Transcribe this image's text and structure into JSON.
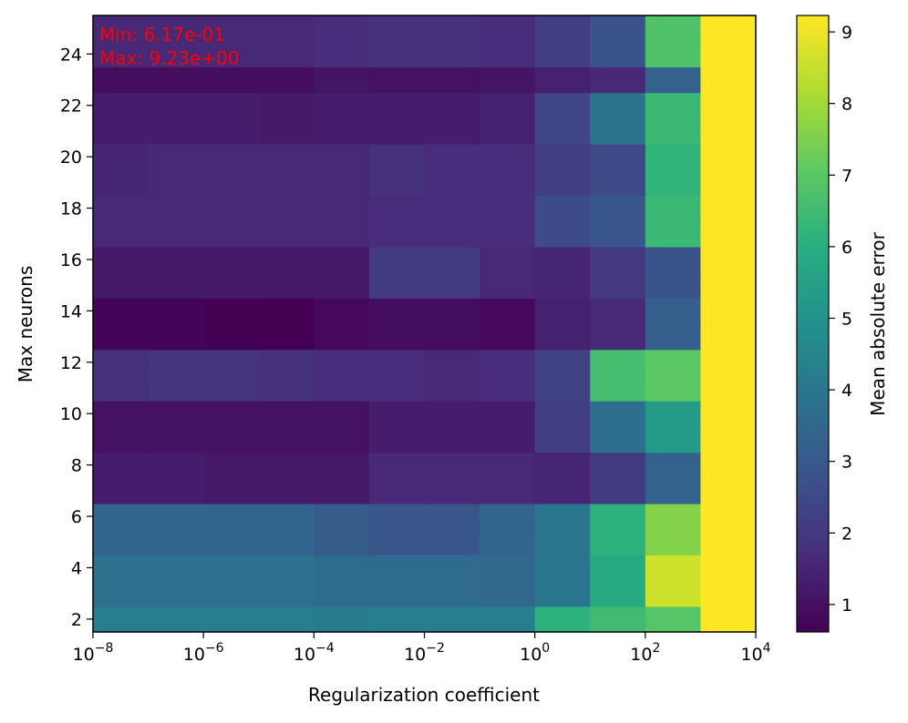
{
  "chart_data": {
    "type": "heatmap",
    "xlabel": "Regularization coefficient",
    "ylabel": "Max neurons",
    "colorbar_label": "Mean absolute error",
    "colormap": "viridis",
    "x_scale": "log",
    "xlim": [
      1e-08,
      10000
    ],
    "ylim": [
      1.5,
      25.5
    ],
    "clim": [
      0.617,
      9.23
    ],
    "x_ticks": [
      {
        "value": 1e-08,
        "base": "10",
        "exp": "−8"
      },
      {
        "value": 1e-06,
        "base": "10",
        "exp": "−6"
      },
      {
        "value": 0.0001,
        "base": "10",
        "exp": "−4"
      },
      {
        "value": 0.01,
        "base": "10",
        "exp": "−2"
      },
      {
        "value": 1,
        "base": "10",
        "exp": "0"
      },
      {
        "value": 100,
        "base": "10",
        "exp": "2"
      },
      {
        "value": 10000,
        "base": "10",
        "exp": "4"
      }
    ],
    "y_ticks": [
      "2",
      "4",
      "6",
      "8",
      "10",
      "12",
      "14",
      "16",
      "18",
      "20",
      "22",
      "24"
    ],
    "colorbar_ticks": [
      "1",
      "2",
      "3",
      "4",
      "5",
      "6",
      "7",
      "8",
      "9"
    ],
    "x_edges": [
      1e-08,
      1e-07,
      1e-06,
      1e-05,
      0.0001,
      0.001,
      0.01,
      0.1,
      1,
      10,
      100,
      1000,
      10000
    ],
    "y_edges": [
      1.5,
      2.5,
      3.5,
      4.5,
      5.5,
      6.5,
      7.5,
      8.5,
      9.5,
      10.5,
      11.5,
      12.5,
      13.5,
      14.5,
      15.5,
      16.5,
      17.5,
      18.5,
      19.5,
      20.5,
      21.5,
      22.5,
      23.5,
      24.5,
      25.5
    ],
    "rows": [
      {
        "y": 2,
        "values": [
          4.3,
          4.3,
          4.3,
          4.3,
          4.2,
          4.3,
          4.3,
          4.3,
          6.1,
          6.5,
          6.9,
          9.23
        ]
      },
      {
        "y": 3,
        "values": [
          3.8,
          3.8,
          3.8,
          3.8,
          3.6,
          3.6,
          3.6,
          3.5,
          4.0,
          5.8,
          8.6,
          9.23
        ]
      },
      {
        "y": 4,
        "values": [
          3.8,
          3.8,
          3.8,
          3.8,
          3.6,
          3.6,
          3.6,
          3.5,
          4.0,
          5.8,
          8.6,
          9.23
        ]
      },
      {
        "y": 5,
        "values": [
          3.4,
          3.4,
          3.4,
          3.4,
          3.1,
          2.9,
          2.9,
          3.4,
          4.0,
          6.1,
          7.6,
          9.23
        ]
      },
      {
        "y": 6,
        "values": [
          3.4,
          3.4,
          3.4,
          3.4,
          3.1,
          2.9,
          2.9,
          3.4,
          4.0,
          6.1,
          7.6,
          9.23
        ]
      },
      {
        "y": 7,
        "values": [
          1.3,
          1.3,
          1.2,
          1.2,
          1.2,
          1.6,
          1.6,
          1.6,
          1.5,
          2.1,
          3.3,
          9.23
        ]
      },
      {
        "y": 8,
        "values": [
          1.3,
          1.3,
          1.2,
          1.2,
          1.2,
          1.6,
          1.6,
          1.6,
          1.5,
          2.1,
          3.3,
          9.23
        ]
      },
      {
        "y": 9,
        "values": [
          1.0,
          1.0,
          1.0,
          1.0,
          1.0,
          1.3,
          1.3,
          1.3,
          2.2,
          3.7,
          5.3,
          9.23
        ]
      },
      {
        "y": 10,
        "values": [
          1.0,
          1.0,
          1.0,
          1.0,
          1.0,
          1.3,
          1.3,
          1.3,
          2.2,
          3.7,
          5.3,
          9.23
        ]
      },
      {
        "y": 11,
        "values": [
          1.8,
          1.9,
          1.9,
          1.8,
          1.7,
          1.7,
          1.6,
          1.7,
          2.3,
          6.6,
          7.0,
          9.23
        ]
      },
      {
        "y": 12,
        "values": [
          1.8,
          1.9,
          1.9,
          1.8,
          1.7,
          1.7,
          1.6,
          1.7,
          2.3,
          6.6,
          7.0,
          9.23
        ]
      },
      {
        "y": 13,
        "values": [
          0.7,
          0.7,
          0.65,
          0.617,
          0.8,
          0.9,
          0.9,
          0.8,
          1.4,
          1.6,
          3.2,
          9.23
        ]
      },
      {
        "y": 14,
        "values": [
          0.7,
          0.7,
          0.65,
          0.617,
          0.8,
          0.9,
          0.9,
          0.8,
          1.4,
          1.6,
          3.2,
          9.23
        ]
      },
      {
        "y": 15,
        "values": [
          1.2,
          1.2,
          1.2,
          1.2,
          1.2,
          2.1,
          2.1,
          1.6,
          1.5,
          2.0,
          2.8,
          9.23
        ]
      },
      {
        "y": 16,
        "values": [
          1.2,
          1.2,
          1.2,
          1.2,
          1.2,
          2.1,
          2.1,
          1.6,
          1.5,
          2.0,
          2.8,
          9.23
        ]
      },
      {
        "y": 17,
        "values": [
          1.6,
          1.6,
          1.6,
          1.6,
          1.6,
          1.7,
          1.7,
          1.7,
          2.6,
          2.9,
          6.4,
          9.23
        ]
      },
      {
        "y": 18,
        "values": [
          1.6,
          1.6,
          1.6,
          1.6,
          1.6,
          1.7,
          1.7,
          1.7,
          2.6,
          2.9,
          6.4,
          9.23
        ]
      },
      {
        "y": 19,
        "values": [
          1.5,
          1.6,
          1.6,
          1.6,
          1.6,
          1.8,
          1.7,
          1.7,
          2.2,
          2.5,
          6.2,
          9.23
        ]
      },
      {
        "y": 20,
        "values": [
          1.5,
          1.6,
          1.6,
          1.6,
          1.6,
          1.8,
          1.7,
          1.7,
          2.2,
          2.5,
          6.2,
          9.23
        ]
      },
      {
        "y": 21,
        "values": [
          1.3,
          1.3,
          1.3,
          1.2,
          1.3,
          1.3,
          1.3,
          1.4,
          2.4,
          3.9,
          6.4,
          9.23
        ]
      },
      {
        "y": 22,
        "values": [
          1.3,
          1.3,
          1.3,
          1.2,
          1.3,
          1.3,
          1.3,
          1.4,
          2.4,
          3.9,
          6.4,
          9.23
        ]
      },
      {
        "y": 23,
        "values": [
          0.9,
          0.9,
          0.9,
          0.9,
          1.1,
          1.0,
          1.0,
          1.1,
          1.4,
          1.6,
          3.3,
          9.23
        ]
      },
      {
        "y": 24,
        "values": [
          1.6,
          1.6,
          1.6,
          1.6,
          1.7,
          1.8,
          1.8,
          1.7,
          2.2,
          2.8,
          6.8,
          9.23
        ]
      },
      {
        "y": 25,
        "values": [
          1.6,
          1.6,
          1.6,
          1.6,
          1.7,
          1.8,
          1.8,
          1.7,
          2.2,
          2.8,
          6.8,
          9.23
        ]
      }
    ],
    "annotations": {
      "min_text": "Min: 6.17e-01",
      "max_text": "Max: 9.23e+00",
      "color": "#ff0000"
    }
  }
}
